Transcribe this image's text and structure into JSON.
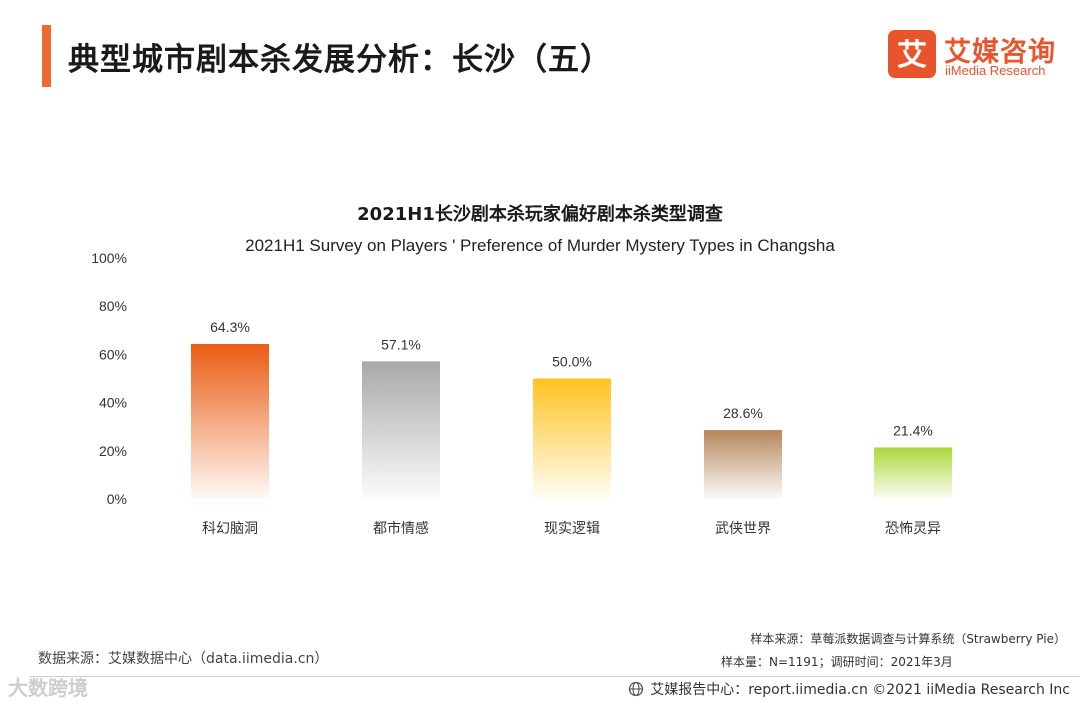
{
  "header": {
    "title": "典型城市剧本杀发展分析：长沙（五）",
    "accent_color": "#ee6a35"
  },
  "logo": {
    "cn": "艾媒咨询",
    "en": "iiMedia Research",
    "brand_color": "#e8542c",
    "mark_glyph": "艾"
  },
  "chart_data": {
    "type": "bar",
    "title": "2021H1长沙剧本杀玩家偏好剧本杀类型调查",
    "subtitle": "2021H1 Survey on Players '  Preference  of Murder Mystery  Types in Changsha",
    "categories": [
      "科幻脑洞",
      "都市情感",
      "现实逻辑",
      "武侠世界",
      "恐怖灵异"
    ],
    "values": [
      64.3,
      57.1,
      50.0,
      28.6,
      21.4
    ],
    "value_labels": [
      "64.3%",
      "57.1%",
      "50.0%",
      "28.6%",
      "21.4%"
    ],
    "colors": [
      "#ea5b12",
      "#a9a9a9",
      "#ffc21e",
      "#b5865a",
      "#a9d93a"
    ],
    "yticks": [
      "0%",
      "20%",
      "40%",
      "60%",
      "80%",
      "100%"
    ],
    "ylim": [
      0,
      100
    ],
    "xlabel": "",
    "ylabel": "",
    "grid": false
  },
  "sources": {
    "left": "数据来源：艾媒数据中心（data.iimedia.cn）",
    "sample_source": "样本来源：草莓派数据调查与计算系统（Strawberry Pie）",
    "sample_size": "样本量：N=1191；调研时间：2021年3月"
  },
  "footer": {
    "text": "艾媒报告中心：report.iimedia.cn  ©2021  iiMedia Research  Inc"
  },
  "watermark": {
    "text": "大数跨境"
  }
}
